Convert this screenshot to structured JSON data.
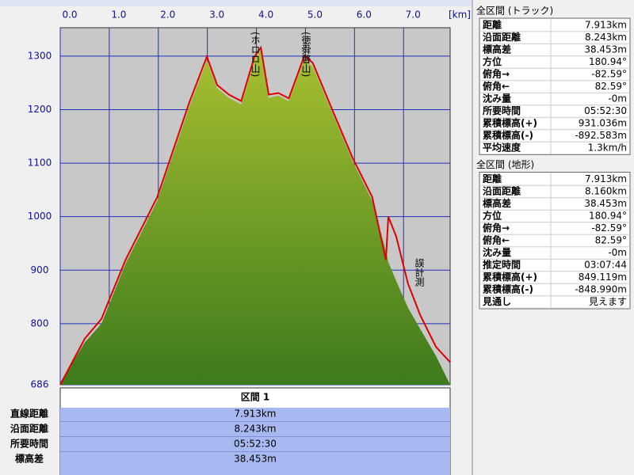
{
  "chart_data": {
    "type": "area",
    "x_label": "[km]",
    "xlim": [
      0,
      7.95
    ],
    "ylim": [
      686,
      1353
    ],
    "xticks": [
      {
        "value": 0,
        "label": "0.0"
      },
      {
        "value": 1,
        "label": "1.0"
      },
      {
        "value": 2,
        "label": "2.0"
      },
      {
        "value": 3,
        "label": "3.0"
      },
      {
        "value": 4,
        "label": "4.0"
      },
      {
        "value": 5,
        "label": "5.0"
      },
      {
        "value": 6,
        "label": "6.0"
      },
      {
        "value": 7,
        "label": "7.0"
      }
    ],
    "yticks": [
      686,
      800,
      900,
      1000,
      1100,
      1200,
      1300
    ],
    "grid": true,
    "x": [
      0,
      0.5,
      0.84,
      1.33,
      1.98,
      2.63,
      2.99,
      3.2,
      3.44,
      3.69,
      3.96,
      4.09,
      4.25,
      4.45,
      4.66,
      4.98,
      5.15,
      5.55,
      5.96,
      6.36,
      6.64,
      6.69,
      6.85,
      7.09,
      7.34,
      7.66,
      7.95
    ],
    "series": [
      {
        "color": "#7fa82a",
        "fill": true,
        "values": [
          690,
          765,
          800,
          912,
          1030,
          1205,
          1292,
          1240,
          1222,
          1210,
          1292,
          1312,
          1222,
          1226,
          1216,
          1294,
          1280,
          1193,
          1104,
          1030,
          935,
          915,
          880,
          830,
          790,
          740,
          686
        ]
      },
      {
        "color": "#e00000",
        "fill": false,
        "values": [
          686,
          772,
          809,
          919,
          1037,
          1213,
          1299,
          1246,
          1228,
          1216,
          1299,
          1316,
          1228,
          1231,
          1221,
          1301,
          1287,
          1199,
          1110,
          1037,
          919,
          1000,
          963,
          875,
          816,
          757,
          728
        ]
      }
    ],
    "annotations": [
      "(ホロロ山)",
      "(徳舜瞥山)",
      "誤計測"
    ]
  },
  "section_table": {
    "header": "区間 1",
    "rows": [
      [
        "直線距離",
        "7.913km"
      ],
      [
        "沿面距離",
        "8.243km"
      ],
      [
        "所要時間",
        "05:52:30"
      ],
      [
        "標高差",
        "38.453m"
      ]
    ]
  },
  "panels": [
    {
      "title": "全区間 (トラック)",
      "rows": [
        [
          "距離",
          "7.913km"
        ],
        [
          "沿面距離",
          "8.243km"
        ],
        [
          "標高差",
          "38.453m"
        ],
        [
          "方位",
          "180.94°"
        ],
        [
          "俯角→",
          "-82.59°"
        ],
        [
          "俯角←",
          "82.59°"
        ],
        [
          "沈み量",
          "-0m"
        ],
        [
          "所要時間",
          "05:52:30"
        ],
        [
          "累積標高(+)",
          "931.036m"
        ],
        [
          "累積標高(-)",
          "-892.583m"
        ],
        [
          "平均速度",
          "1.3km/h"
        ]
      ]
    },
    {
      "title": "全区間 (地形)",
      "rows": [
        [
          "距離",
          "7.913km"
        ],
        [
          "沿面距離",
          "8.160km"
        ],
        [
          "標高差",
          "38.453m"
        ],
        [
          "方位",
          "180.94°"
        ],
        [
          "俯角→",
          "-82.59°"
        ],
        [
          "俯角←",
          "82.59°"
        ],
        [
          "沈み量",
          "-0m"
        ],
        [
          "推定時間",
          "03:07:44"
        ],
        [
          "累積標高(+)",
          "849.119m"
        ],
        [
          "累積標高(-)",
          "-848.990m"
        ],
        [
          "見通し",
          "見えます"
        ]
      ]
    }
  ]
}
